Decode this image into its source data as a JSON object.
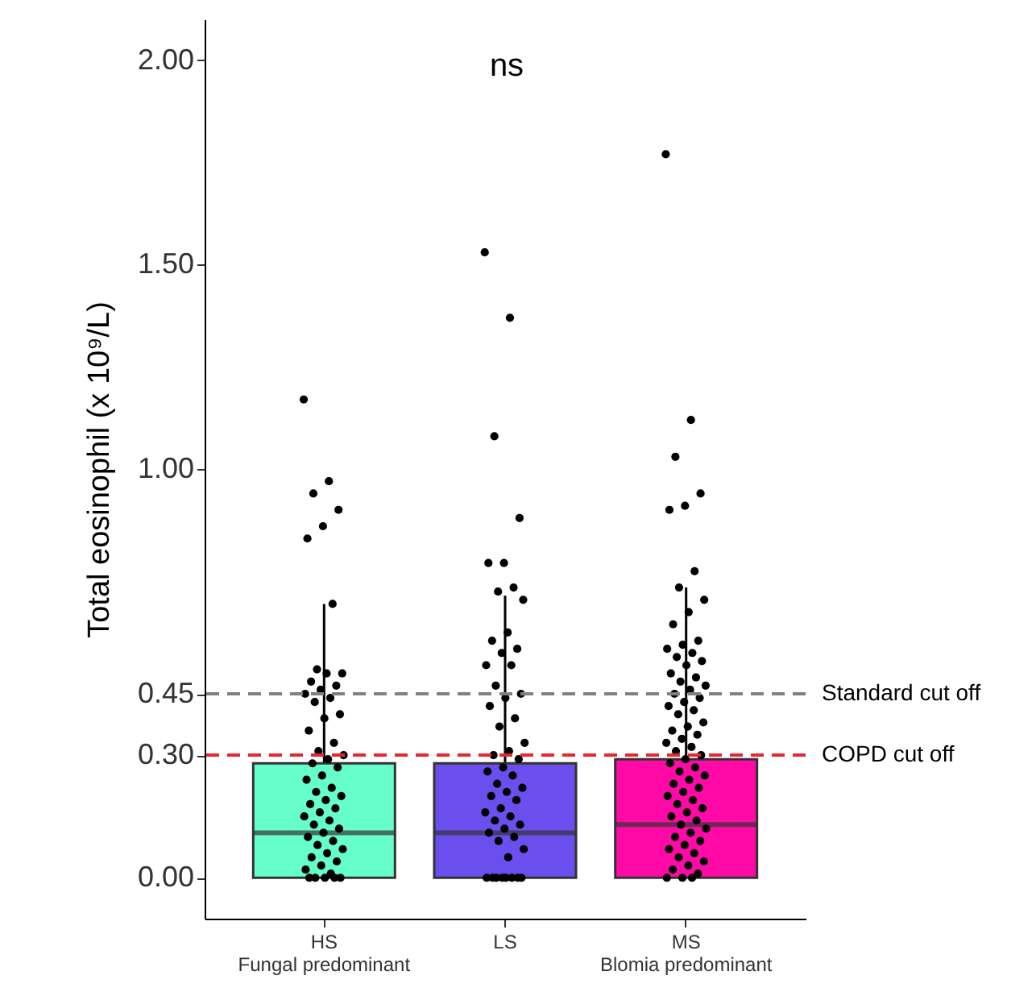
{
  "chart_data": {
    "type": "box",
    "ylabel": "Total eosinophil (x 10⁹/L)",
    "annotations": [
      "ns"
    ],
    "categories": [
      "HS\nFungal predominant",
      "LS",
      "MS\nBlomia predominant"
    ],
    "colors": [
      "#66ffcc",
      "#6a4fee",
      "#ff0aa6"
    ],
    "boxes": [
      {
        "low": 0,
        "q1": 0,
        "median": 0.11,
        "q3": 0.28,
        "high": 0.67
      },
      {
        "low": 0,
        "q1": 0,
        "median": 0.11,
        "q3": 0.28,
        "high": 0.69
      },
      {
        "low": 0,
        "q1": 0,
        "median": 0.13,
        "q3": 0.29,
        "high": 0.71
      }
    ],
    "series": [
      {
        "type": "scatter",
        "color": "#000000",
        "x": [
          "HS\nFungal predominant",
          "HS\nFungal predominant",
          "HS\nFungal predominant",
          "HS\nFungal predominant",
          "HS\nFungal predominant",
          "HS\nFungal predominant",
          "HS\nFungal predominant",
          "HS\nFungal predominant",
          "HS\nFungal predominant",
          "HS\nFungal predominant",
          "HS\nFungal predominant",
          "HS\nFungal predominant",
          "HS\nFungal predominant",
          "HS\nFungal predominant",
          "HS\nFungal predominant",
          "HS\nFungal predominant",
          "HS\nFungal predominant",
          "HS\nFungal predominant",
          "HS\nFungal predominant",
          "HS\nFungal predominant",
          "HS\nFungal predominant",
          "HS\nFungal predominant",
          "HS\nFungal predominant",
          "HS\nFungal predominant",
          "HS\nFungal predominant",
          "HS\nFungal predominant",
          "HS\nFungal predominant",
          "HS\nFungal predominant",
          "HS\nFungal predominant",
          "HS\nFungal predominant",
          "HS\nFungal predominant",
          "HS\nFungal predominant",
          "HS\nFungal predominant",
          "HS\nFungal predominant",
          "HS\nFungal predominant",
          "HS\nFungal predominant",
          "HS\nFungal predominant",
          "HS\nFungal predominant",
          "HS\nFungal predominant",
          "HS\nFungal predominant",
          "HS\nFungal predominant",
          "HS\nFungal predominant",
          "HS\nFungal predominant",
          "HS\nFungal predominant",
          "HS\nFungal predominant",
          "HS\nFungal predominant",
          "HS\nFungal predominant",
          "HS\nFungal predominant",
          "HS\nFungal predominant",
          "HS\nFungal predominant",
          "HS\nFungal predominant",
          "HS\nFungal predominant",
          "HS\nFungal predominant",
          "HS\nFungal predominant"
        ],
        "values": [
          1.17,
          0.97,
          0.94,
          0.9,
          0.86,
          0.83,
          0.67,
          0.51,
          0.5,
          0.5,
          0.48,
          0.47,
          0.46,
          0.45,
          0.44,
          0.43,
          0.4,
          0.39,
          0.36,
          0.33,
          0.31,
          0.3,
          0.29,
          0.28,
          0.27,
          0.25,
          0.24,
          0.22,
          0.21,
          0.2,
          0.19,
          0.18,
          0.17,
          0.16,
          0.15,
          0.14,
          0.13,
          0.12,
          0.11,
          0.1,
          0.09,
          0.08,
          0.07,
          0.06,
          0.05,
          0.04,
          0.03,
          0.02,
          0.01,
          0,
          0,
          0,
          0,
          0
        ]
      },
      {
        "type": "scatter",
        "color": "#000000",
        "x": [
          "LS",
          "LS",
          "LS",
          "LS",
          "LS",
          "LS",
          "LS",
          "LS",
          "LS",
          "LS",
          "LS",
          "LS",
          "LS",
          "LS",
          "LS",
          "LS",
          "LS",
          "LS",
          "LS",
          "LS",
          "LS",
          "LS",
          "LS",
          "LS",
          "LS",
          "LS",
          "LS",
          "LS",
          "LS",
          "LS",
          "LS",
          "LS",
          "LS",
          "LS",
          "LS",
          "LS",
          "LS",
          "LS",
          "LS",
          "LS",
          "LS",
          "LS",
          "LS",
          "LS",
          "LS",
          "LS",
          "LS",
          "LS",
          "LS",
          "LS",
          "LS",
          "LS"
        ],
        "values": [
          1.53,
          1.37,
          1.08,
          0.88,
          0.77,
          0.77,
          0.71,
          0.7,
          0.68,
          0.6,
          0.58,
          0.56,
          0.55,
          0.52,
          0.52,
          0.47,
          0.45,
          0.44,
          0.42,
          0.39,
          0.37,
          0.33,
          0.31,
          0.3,
          0.29,
          0.27,
          0.26,
          0.25,
          0.23,
          0.22,
          0.21,
          0.2,
          0.19,
          0.17,
          0.16,
          0.15,
          0.14,
          0.13,
          0.12,
          0.11,
          0.1,
          0.09,
          0.07,
          0.05,
          0,
          0,
          0,
          0,
          0,
          0,
          0,
          0
        ]
      },
      {
        "type": "scatter",
        "color": "#000000",
        "x": [
          "MS\nBlomia predominant",
          "MS\nBlomia predominant",
          "MS\nBlomia predominant",
          "MS\nBlomia predominant",
          "MS\nBlomia predominant",
          "MS\nBlomia predominant",
          "MS\nBlomia predominant",
          "MS\nBlomia predominant",
          "MS\nBlomia predominant",
          "MS\nBlomia predominant",
          "MS\nBlomia predominant",
          "MS\nBlomia predominant",
          "MS\nBlomia predominant",
          "MS\nBlomia predominant",
          "MS\nBlomia predominant",
          "MS\nBlomia predominant",
          "MS\nBlomia predominant",
          "MS\nBlomia predominant",
          "MS\nBlomia predominant",
          "MS\nBlomia predominant",
          "MS\nBlomia predominant",
          "MS\nBlomia predominant",
          "MS\nBlomia predominant",
          "MS\nBlomia predominant",
          "MS\nBlomia predominant",
          "MS\nBlomia predominant",
          "MS\nBlomia predominant",
          "MS\nBlomia predominant",
          "MS\nBlomia predominant",
          "MS\nBlomia predominant",
          "MS\nBlomia predominant",
          "MS\nBlomia predominant",
          "MS\nBlomia predominant",
          "MS\nBlomia predominant",
          "MS\nBlomia predominant",
          "MS\nBlomia predominant",
          "MS\nBlomia predominant",
          "MS\nBlomia predominant",
          "MS\nBlomia predominant",
          "MS\nBlomia predominant",
          "MS\nBlomia predominant",
          "MS\nBlomia predominant",
          "MS\nBlomia predominant",
          "MS\nBlomia predominant",
          "MS\nBlomia predominant",
          "MS\nBlomia predominant",
          "MS\nBlomia predominant",
          "MS\nBlomia predominant",
          "MS\nBlomia predominant",
          "MS\nBlomia predominant",
          "MS\nBlomia predominant",
          "MS\nBlomia predominant",
          "MS\nBlomia predominant",
          "MS\nBlomia predominant",
          "MS\nBlomia predominant",
          "MS\nBlomia predominant",
          "MS\nBlomia predominant",
          "MS\nBlomia predominant",
          "MS\nBlomia predominant",
          "MS\nBlomia predominant",
          "MS\nBlomia predominant",
          "MS\nBlomia predominant",
          "MS\nBlomia predominant",
          "MS\nBlomia predominant",
          "MS\nBlomia predominant",
          "MS\nBlomia predominant",
          "MS\nBlomia predominant",
          "MS\nBlomia predominant",
          "MS\nBlomia predominant",
          "MS\nBlomia predominant"
        ],
        "values": [
          1.77,
          1.12,
          1.03,
          0.94,
          0.91,
          0.9,
          0.75,
          0.71,
          0.68,
          0.65,
          0.62,
          0.58,
          0.57,
          0.56,
          0.55,
          0.54,
          0.53,
          0.52,
          0.5,
          0.49,
          0.48,
          0.47,
          0.46,
          0.45,
          0.44,
          0.43,
          0.42,
          0.41,
          0.4,
          0.38,
          0.37,
          0.36,
          0.35,
          0.34,
          0.33,
          0.32,
          0.31,
          0.3,
          0.29,
          0.28,
          0.27,
          0.26,
          0.25,
          0.24,
          0.23,
          0.22,
          0.21,
          0.2,
          0.19,
          0.18,
          0.17,
          0.16,
          0.15,
          0.14,
          0.13,
          0.12,
          0.11,
          0.1,
          0.09,
          0.08,
          0.07,
          0.06,
          0.05,
          0.04,
          0.03,
          0.02,
          0.01,
          0,
          0,
          0
        ]
      }
    ],
    "ylim": [
      -0.1,
      2.1
    ],
    "yticks": [
      {
        "value": 0,
        "label": "0.00"
      },
      {
        "value": 0.3,
        "label": "0.30"
      },
      {
        "value": 0.45,
        "label": "0.45"
      },
      {
        "value": 1,
        "label": "1.00"
      },
      {
        "value": 1.5,
        "label": "1.50"
      },
      {
        "value": 2,
        "label": "2.00"
      }
    ],
    "ref_lines": [
      {
        "axis": "y",
        "value": 0.45,
        "label": "Standard cut off",
        "color": "#808080",
        "line_style": "dashed"
      },
      {
        "axis": "y",
        "value": 0.3,
        "label": "COPD cut off",
        "color": "#e8262b",
        "line_style": "dashed"
      }
    ]
  }
}
